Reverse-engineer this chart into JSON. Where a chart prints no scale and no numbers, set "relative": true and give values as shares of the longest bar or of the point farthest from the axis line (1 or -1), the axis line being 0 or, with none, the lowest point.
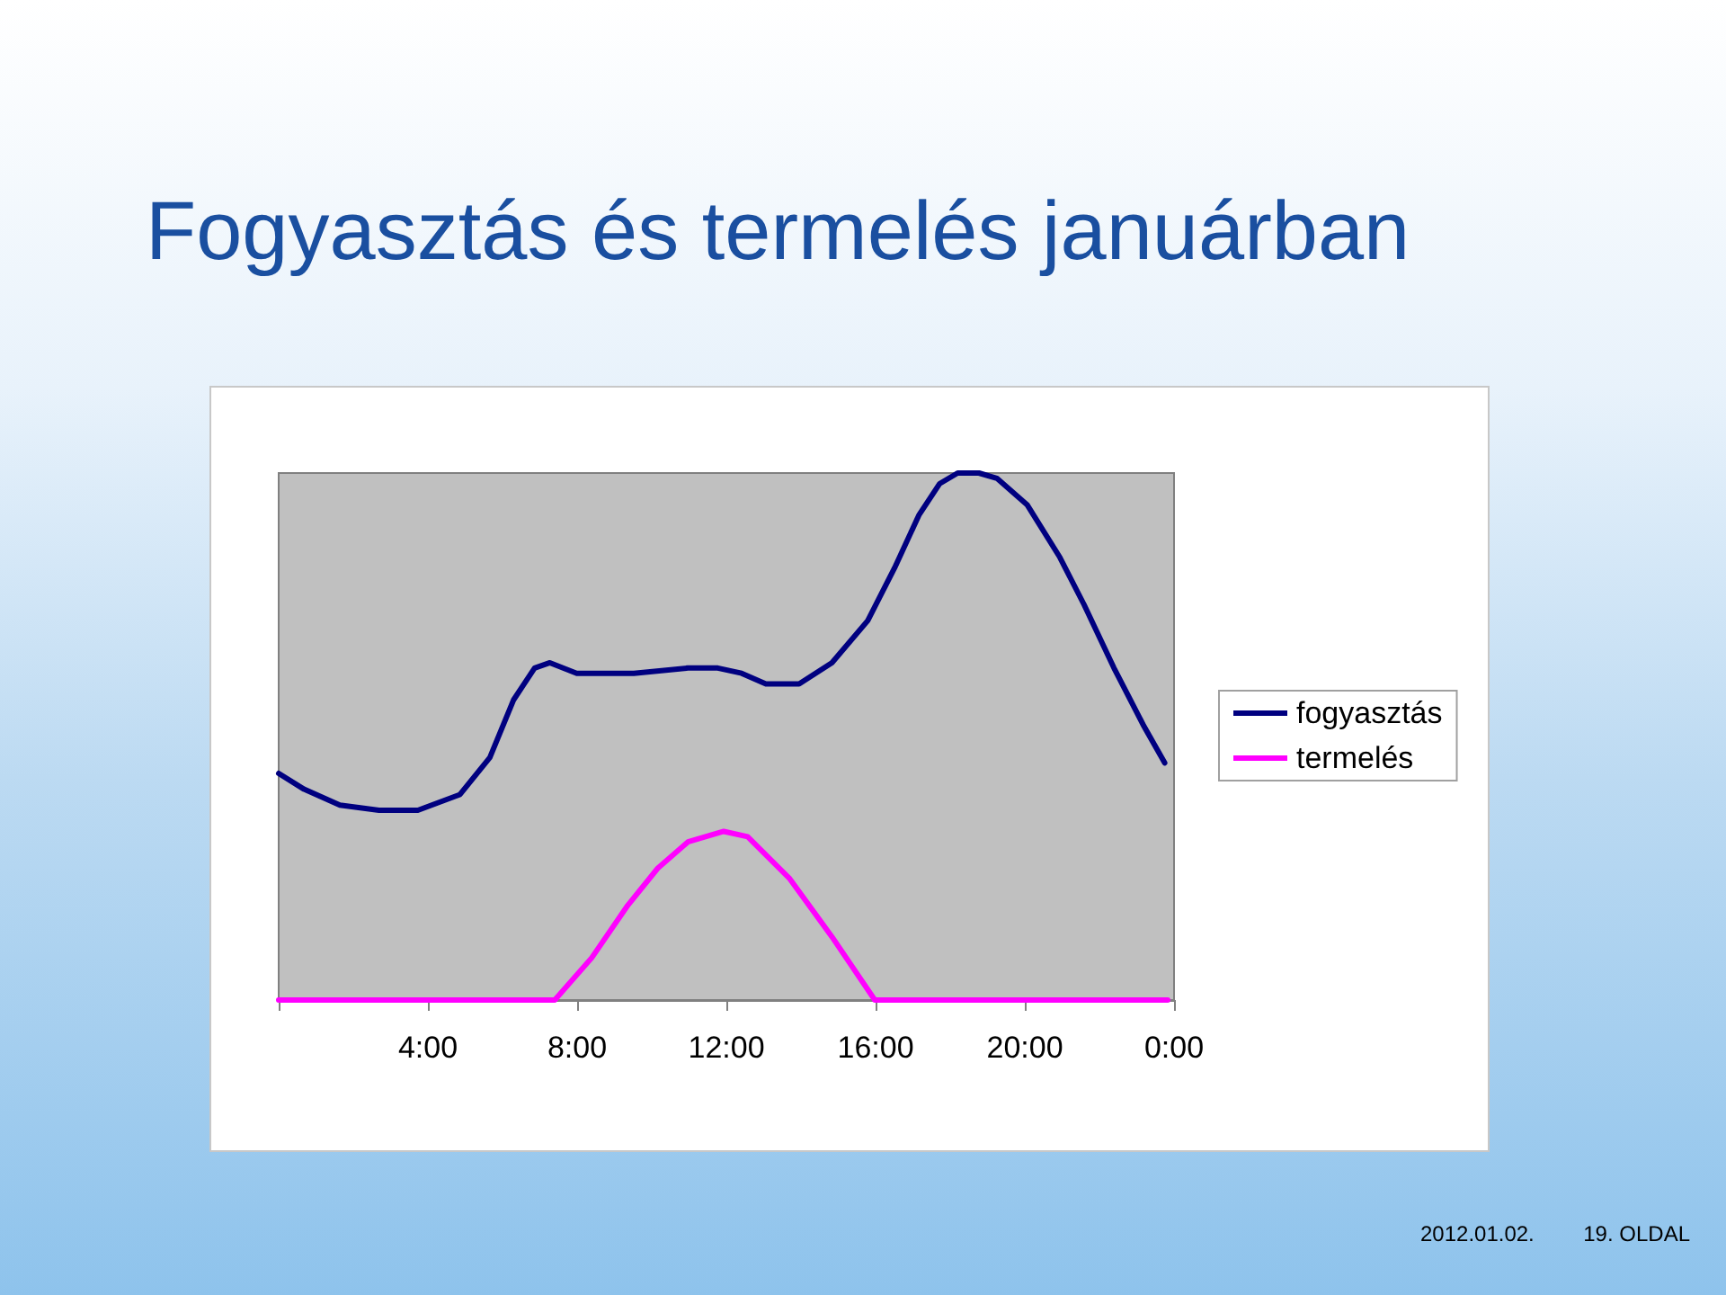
{
  "chart_data": {
    "type": "line",
    "title": "Fogyasztás és termelés januárban",
    "relative": true,
    "legend": "right",
    "grid": false,
    "marker": "none",
    "line_style": "solid",
    "xlim": [
      0,
      24
    ],
    "xticks": [
      {
        "value": 0,
        "label": null
      },
      {
        "value": 4,
        "label": "4:00"
      },
      {
        "value": 8,
        "label": "8:00"
      },
      {
        "value": 12,
        "label": "12:00"
      },
      {
        "value": 16,
        "label": "16:00"
      },
      {
        "value": 20,
        "label": "20:00"
      },
      {
        "value": 24,
        "label": "0:00"
      }
    ],
    "series": [
      {
        "name": "fogyasztás",
        "color": "#000080",
        "x": [
          0,
          0.68,
          1.64,
          2.69,
          3.73,
          4.86,
          5.66,
          6.3,
          6.86,
          7.27,
          7.99,
          9.52,
          10.97,
          11.77,
          12.41,
          13.06,
          13.95,
          14.83,
          15.79,
          16.51,
          17.16,
          17.72,
          18.2,
          18.77,
          19.25,
          20.06,
          20.94,
          21.59,
          22.39,
          23.19,
          23.75
        ],
        "values": [
          0.43,
          0.4,
          0.37,
          0.36,
          0.36,
          0.39,
          0.46,
          0.57,
          0.63,
          0.64,
          0.62,
          0.62,
          0.63,
          0.63,
          0.62,
          0.6,
          0.6,
          0.64,
          0.72,
          0.82,
          0.92,
          0.98,
          1,
          1,
          0.99,
          0.94,
          0.84,
          0.75,
          0.63,
          0.52,
          0.45
        ]
      },
      {
        "name": "termelés",
        "color": "#ff00ff",
        "x": [
          0,
          7.4,
          8.39,
          9.36,
          10.16,
          10.97,
          11.93,
          12.57,
          13.7,
          14.83,
          15.98,
          23.83
        ],
        "values": [
          0,
          0,
          0.08,
          0.18,
          0.25,
          0.3,
          0.32,
          0.31,
          0.23,
          0.12,
          0,
          0
        ]
      }
    ],
    "annotations": [
      "2012.01.02.",
      "19. OLDAL"
    ]
  }
}
